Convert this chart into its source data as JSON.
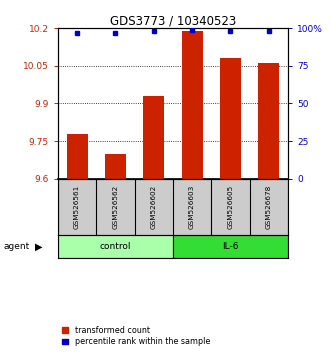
{
  "title": "GDS3773 / 10340523",
  "samples": [
    "GSM526561",
    "GSM526562",
    "GSM526602",
    "GSM526603",
    "GSM526605",
    "GSM526678"
  ],
  "red_values": [
    9.78,
    9.7,
    9.93,
    10.19,
    10.08,
    10.06
  ],
  "blue_values": [
    97,
    97,
    98,
    99,
    98,
    98
  ],
  "ylim_left": [
    9.6,
    10.2
  ],
  "ylim_right": [
    0,
    100
  ],
  "yticks_left": [
    9.6,
    9.75,
    9.9,
    10.05,
    10.2
  ],
  "ytick_labels_left": [
    "9.6",
    "9.75",
    "9.9",
    "10.05",
    "10.2"
  ],
  "yticks_right": [
    0,
    25,
    50,
    75,
    100
  ],
  "ytick_labels_right": [
    "0",
    "25",
    "50",
    "75",
    "100%"
  ],
  "grid_yticks": [
    9.75,
    9.9,
    10.05
  ],
  "groups": [
    {
      "label": "control",
      "indices": [
        0,
        1,
        2
      ],
      "color": "#aaffaa"
    },
    {
      "label": "IL-6",
      "indices": [
        3,
        4,
        5
      ],
      "color": "#33dd33"
    }
  ],
  "bar_color": "#cc2200",
  "dot_color": "#0000cc",
  "bar_width": 0.55,
  "bg_color": "#ffffff",
  "sample_box_color": "#cccccc",
  "legend_labels": [
    "transformed count",
    "percentile rank within the sample"
  ],
  "agent_label": "agent"
}
